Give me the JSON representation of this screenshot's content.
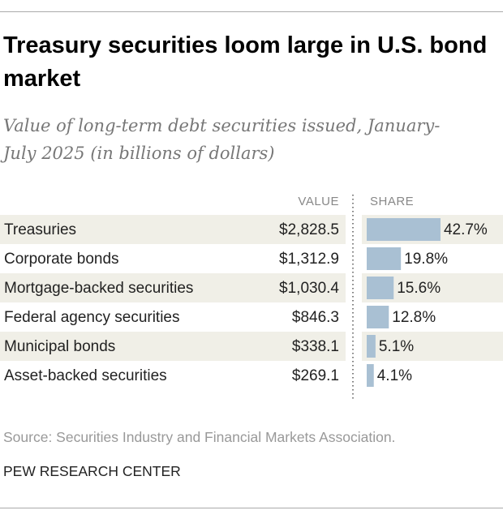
{
  "chart_data": {
    "type": "bar",
    "title": "Treasury securities loom large in U.S. bond market",
    "subtitle": "Value of long-term debt securities issued, January-July 2025 (in billions of dollars)",
    "categories": [
      "Treasuries",
      "Corporate bonds",
      "Mortgage-backed securities",
      "Federal agency securities",
      "Municipal bonds",
      "Asset-backed securities"
    ],
    "series": [
      {
        "name": "VALUE",
        "values": [
          2828.5,
          1312.9,
          1030.4,
          846.3,
          338.1,
          269.1
        ],
        "value_labels": [
          "$2,828.5",
          "$1,312.9",
          "$1,030.4",
          "$846.3",
          "$338.1",
          "$269.1"
        ]
      },
      {
        "name": "SHARE",
        "color": "#a9c0d3",
        "values": [
          42.7,
          19.8,
          15.6,
          12.8,
          5.1,
          4.1
        ],
        "value_labels": [
          "42.7%",
          "19.8%",
          "15.6%",
          "12.8%",
          "5.1%",
          "4.1%"
        ]
      }
    ],
    "source": "Source: Securities Industry and Financial Markets Association.",
    "credit": "PEW RESEARCH CENTER"
  }
}
